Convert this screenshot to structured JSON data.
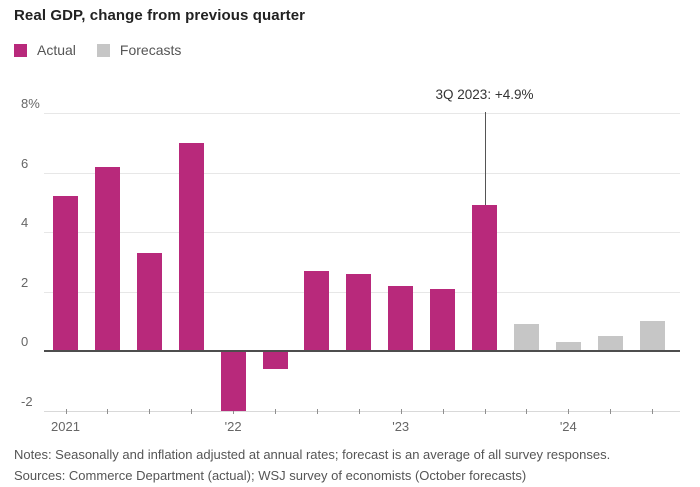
{
  "title": "Real GDP, change from previous quarter",
  "legend": {
    "actual_label": "Actual",
    "forecasts_label": "Forecasts"
  },
  "colors": {
    "actual": "#b8297b",
    "forecast": "#c6c6c6",
    "grid": "#e7e7e7",
    "zero_line": "#4d4d4d",
    "axis_line": "#d9d9d9",
    "tick": "#8f8f8f",
    "axis_text": "#666666",
    "annotation_text": "#333333",
    "annotation_line": "#555555"
  },
  "chart_data": {
    "type": "bar",
    "title": "Real GDP, change from previous quarter",
    "x": [
      "1Q 2021",
      "2Q 2021",
      "3Q 2021",
      "4Q 2021",
      "1Q 2022",
      "2Q 2022",
      "3Q 2022",
      "4Q 2022",
      "1Q 2023",
      "2Q 2023",
      "3Q 2023",
      "4Q 2023",
      "1Q 2024",
      "2Q 2024",
      "3Q 2024"
    ],
    "series": [
      {
        "name": "Actual",
        "values": [
          5.2,
          6.2,
          3.3,
          7.0,
          -2.0,
          -0.6,
          2.7,
          2.6,
          2.2,
          2.1,
          4.9,
          null,
          null,
          null,
          null
        ]
      },
      {
        "name": "Forecasts",
        "values": [
          null,
          null,
          null,
          null,
          null,
          null,
          null,
          null,
          null,
          null,
          null,
          0.9,
          0.3,
          0.5,
          1.0
        ]
      }
    ],
    "ylim": [
      -2,
      8
    ],
    "y_ticks": [
      {
        "label": "8%",
        "value": 8
      },
      {
        "label": "6",
        "value": 6
      },
      {
        "label": "4",
        "value": 4
      },
      {
        "label": "2",
        "value": 2
      },
      {
        "label": "0",
        "value": 0
      },
      {
        "label": "-2",
        "value": -2
      }
    ],
    "x_tick_labels": [
      {
        "label": "2021",
        "index": 0
      },
      {
        "label": "'22",
        "index": 4
      },
      {
        "label": "'23",
        "index": 8
      },
      {
        "label": "'24",
        "index": 12
      }
    ],
    "annotation": {
      "text": "3Q 2023: +4.9%",
      "index": 10,
      "value": 4.9
    },
    "grid": true,
    "legend_position": "top-left"
  },
  "notes": "Notes: Seasonally and inflation adjusted at annual rates; forecast is an average of all survey responses.",
  "sources": "Sources: Commerce Department (actual); WSJ survey of economists (October forecasts)"
}
